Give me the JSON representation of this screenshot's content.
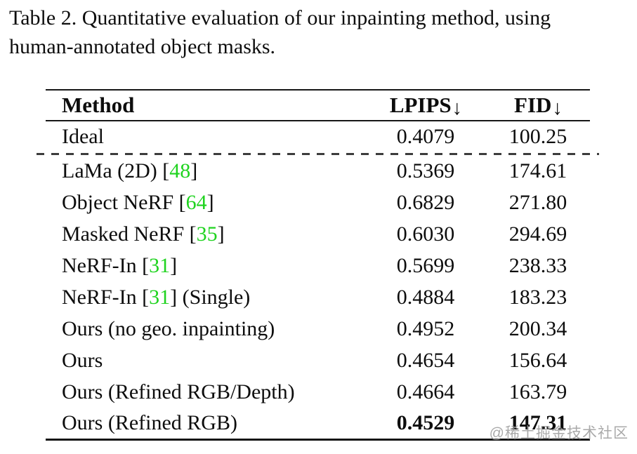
{
  "caption": {
    "line1": "Table 2.  Quantitative evaluation of our inpainting method, using",
    "line2": "human-annotated object masks."
  },
  "table": {
    "header": {
      "method": "Method",
      "lpips": "LPIPS",
      "fid": "FID",
      "arrow": "↓"
    },
    "rows": [
      {
        "pre": "Ideal",
        "cite": "",
        "post": "",
        "lpips": "0.4079",
        "fid": "100.25"
      },
      {
        "pre": "LaMa (2D) [",
        "cite": "48",
        "post": "]",
        "lpips": "0.5369",
        "fid": "174.61"
      },
      {
        "pre": "Object NeRF [",
        "cite": "64",
        "post": "]",
        "lpips": "0.6829",
        "fid": "271.80"
      },
      {
        "pre": "Masked NeRF [",
        "cite": "35",
        "post": "]",
        "lpips": "0.6030",
        "fid": "294.69"
      },
      {
        "pre": "NeRF-In [",
        "cite": "31",
        "post": "]",
        "lpips": "0.5699",
        "fid": "238.33"
      },
      {
        "pre": "NeRF-In [",
        "cite": "31",
        "post": "] (Single)",
        "lpips": "0.4884",
        "fid": "183.23"
      },
      {
        "pre": "Ours (no geo. inpainting)",
        "cite": "",
        "post": "",
        "lpips": "0.4952",
        "fid": "200.34"
      },
      {
        "pre": "Ours",
        "cite": "",
        "post": "",
        "lpips": "0.4654",
        "fid": "156.64"
      },
      {
        "pre": "Ours (Refined RGB/Depth)",
        "cite": "",
        "post": "",
        "lpips": "0.4664",
        "fid": "163.79"
      },
      {
        "pre": "Ours (Refined RGB)",
        "cite": "",
        "post": "",
        "lpips": "0.4529",
        "fid": "147.31"
      }
    ]
  },
  "watermark": "@稀土掘金技术社区",
  "colors": {
    "citation_green": "#1fd31f",
    "rule_black": "#161616",
    "text_black": "#0d0d0d",
    "watermark_gray": "#9b9b9b"
  }
}
